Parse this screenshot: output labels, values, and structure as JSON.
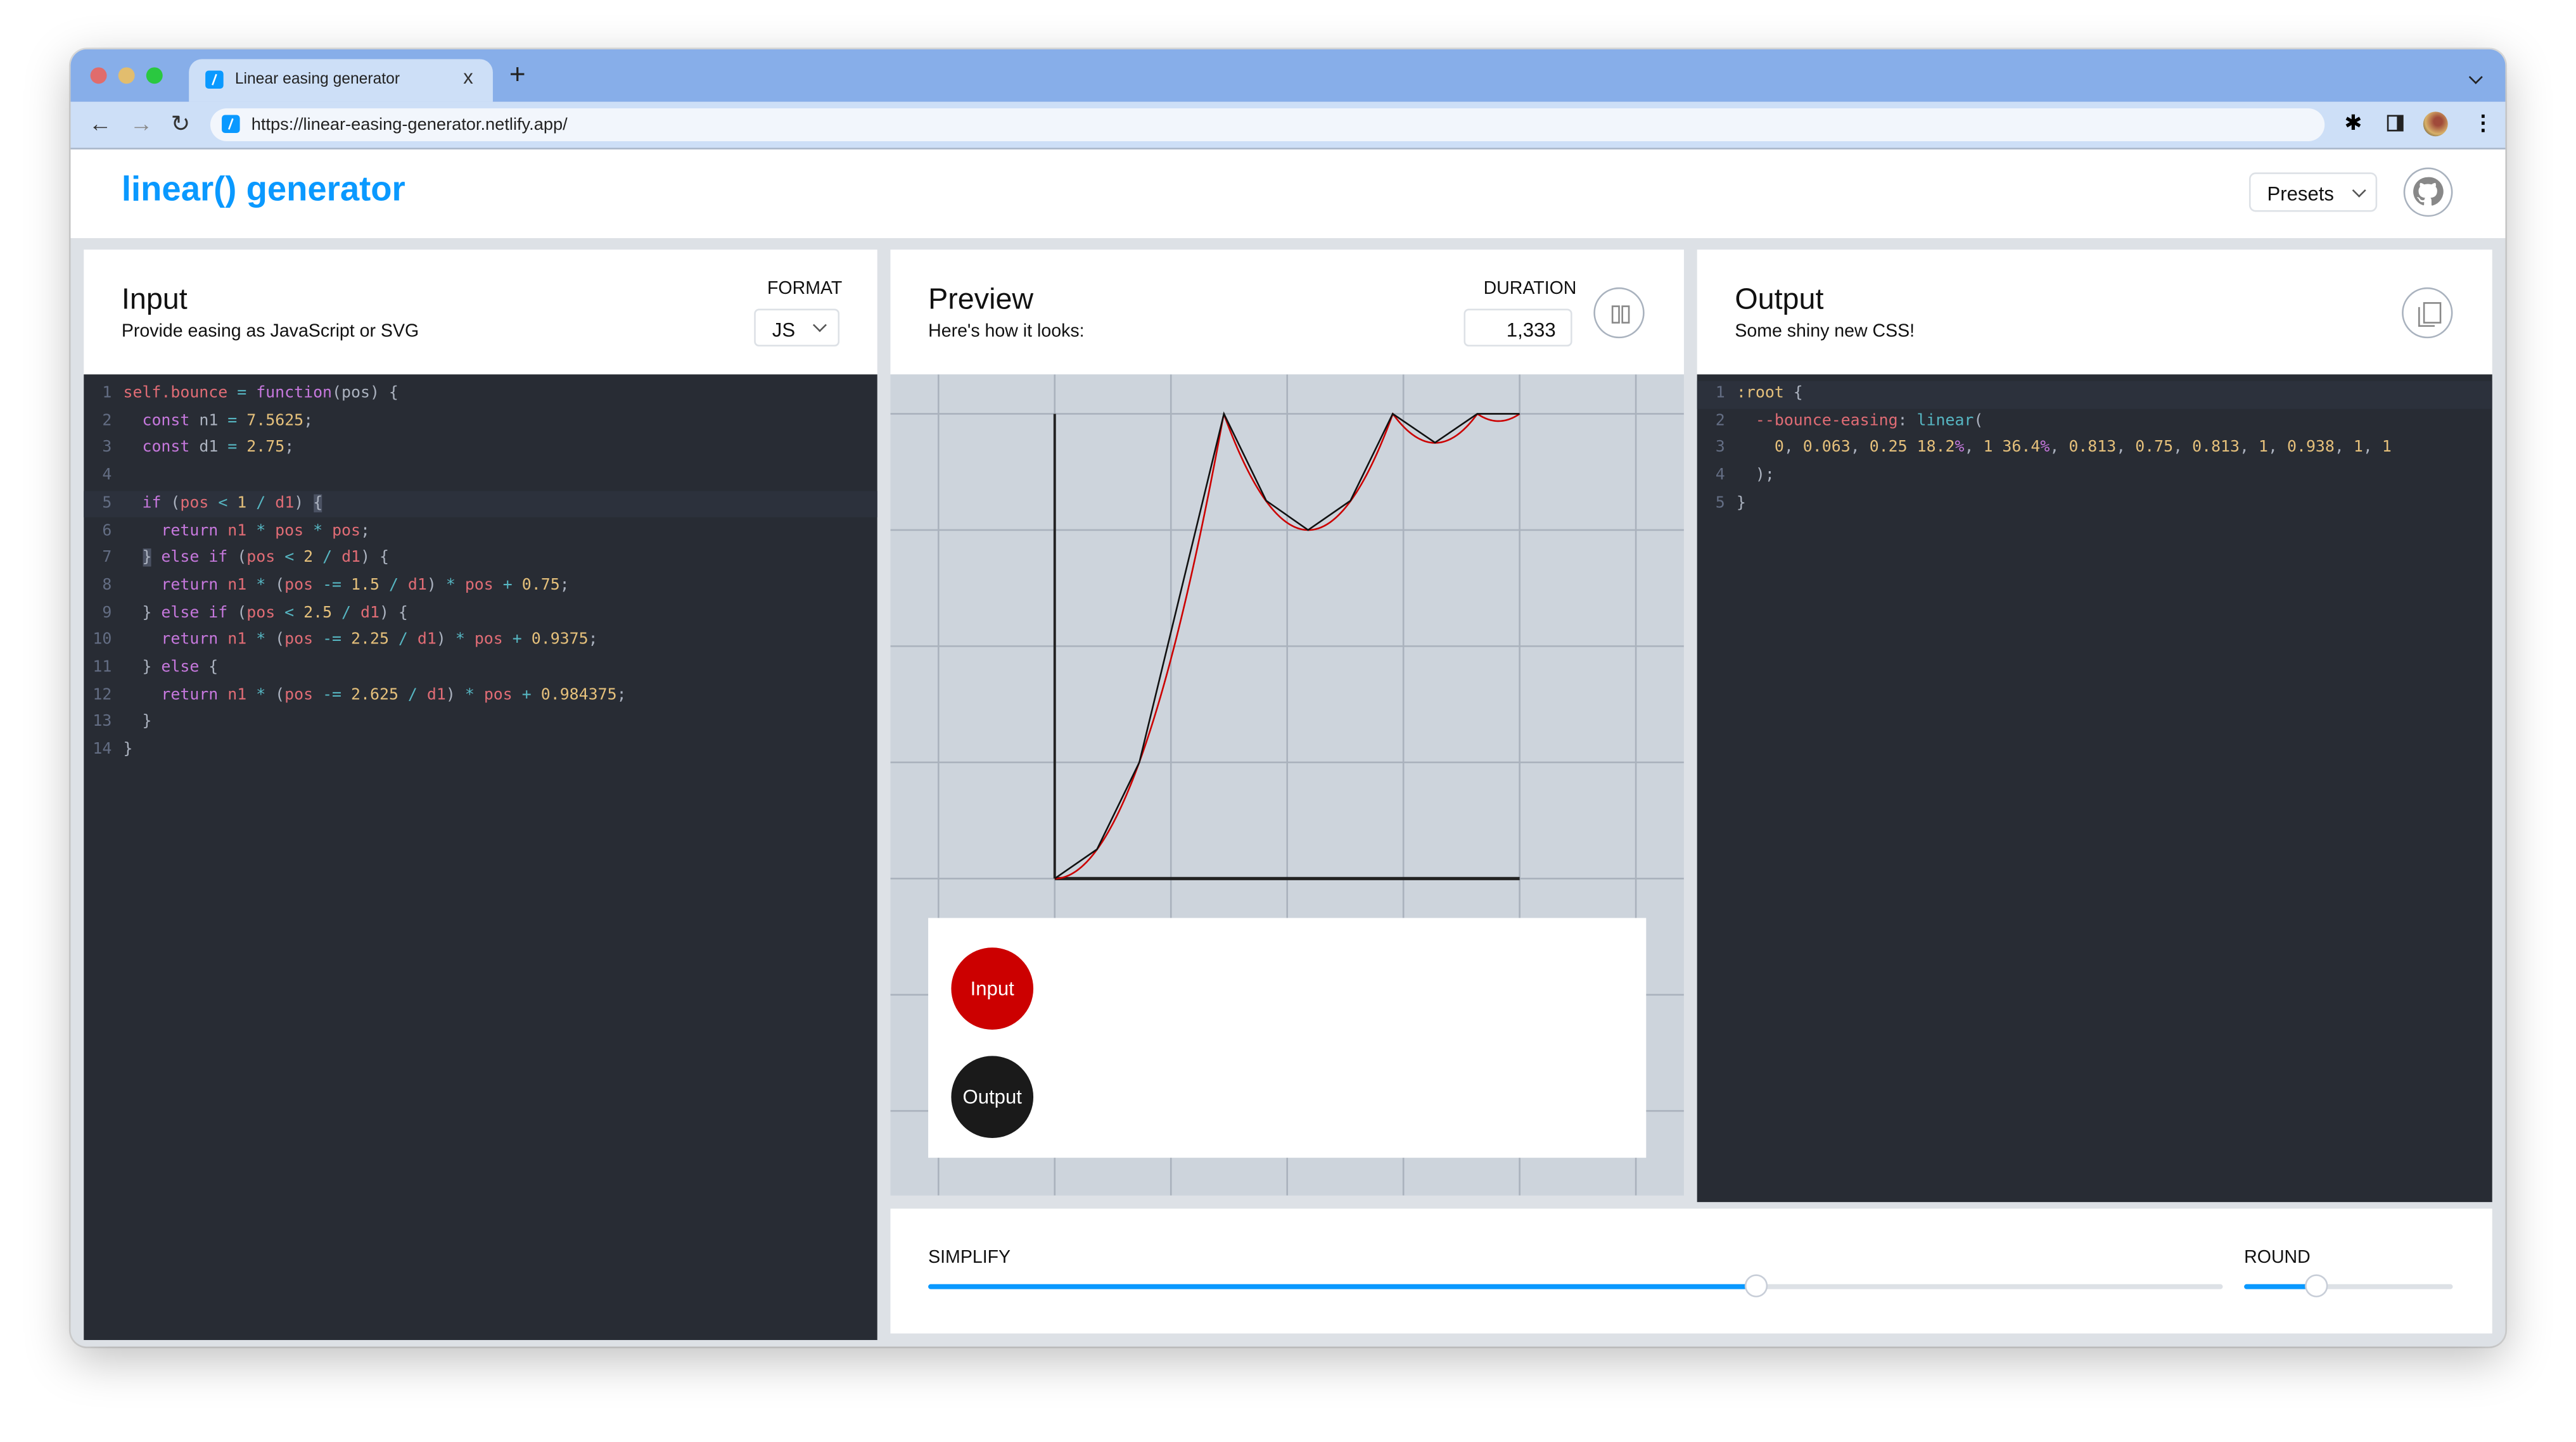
{
  "browser": {
    "tab_title": "Linear easing generator",
    "tab_close": "x",
    "new_tab": "+",
    "url": "https://linear-easing-generator.netlify.app/",
    "traffic_colors": [
      "#e06c6c",
      "#e2bd6e",
      "#2ac840"
    ]
  },
  "header": {
    "title": "linear() generator",
    "presets_label": "Presets",
    "brand_color": "#0a99ff"
  },
  "input": {
    "title": "Input",
    "subtitle": "Provide easing as JavaScript or SVG",
    "format_label": "FORMAT",
    "format_value": "JS",
    "lines": [
      [
        [
          "self.bounce",
          "v"
        ],
        [
          " = ",
          "o"
        ],
        [
          "function",
          "k"
        ],
        [
          "(pos) {",
          "p"
        ]
      ],
      [
        [
          "  ",
          "p"
        ],
        [
          "const",
          "k"
        ],
        [
          " n1 ",
          "p"
        ],
        [
          "=",
          "o"
        ],
        [
          " ",
          "p"
        ],
        [
          "7.5625",
          "n"
        ],
        [
          ";",
          "p"
        ]
      ],
      [
        [
          "  ",
          "p"
        ],
        [
          "const",
          "k"
        ],
        [
          " d1 ",
          "p"
        ],
        [
          "=",
          "o"
        ],
        [
          " ",
          "p"
        ],
        [
          "2.75",
          "n"
        ],
        [
          ";",
          "p"
        ]
      ],
      [],
      [
        [
          "  ",
          "p"
        ],
        [
          "if",
          "k"
        ],
        [
          " (",
          "p"
        ],
        [
          "pos",
          "v"
        ],
        [
          " < ",
          "o"
        ],
        [
          "1",
          "n"
        ],
        [
          " / ",
          "o"
        ],
        [
          "d1",
          "v"
        ],
        [
          ") ",
          "p"
        ],
        [
          "{",
          "bracket"
        ]
      ],
      [
        [
          "    ",
          "p"
        ],
        [
          "return",
          "k"
        ],
        [
          " n1 ",
          "v"
        ],
        [
          "*",
          "o"
        ],
        [
          " pos ",
          "v"
        ],
        [
          "*",
          "o"
        ],
        [
          " pos",
          "v"
        ],
        [
          ";",
          "p"
        ]
      ],
      [
        [
          "  ",
          "p"
        ],
        [
          "}",
          "bracket"
        ],
        [
          " else if",
          "k"
        ],
        [
          " (",
          "p"
        ],
        [
          "pos",
          "v"
        ],
        [
          " < ",
          "o"
        ],
        [
          "2",
          "n"
        ],
        [
          " / ",
          "o"
        ],
        [
          "d1",
          "v"
        ],
        [
          ") {",
          "p"
        ]
      ],
      [
        [
          "    ",
          "p"
        ],
        [
          "return",
          "k"
        ],
        [
          " n1 ",
          "v"
        ],
        [
          "*",
          "o"
        ],
        [
          " (",
          "p"
        ],
        [
          "pos",
          "v"
        ],
        [
          " -= ",
          "o"
        ],
        [
          "1.5",
          "n"
        ],
        [
          " / ",
          "o"
        ],
        [
          "d1",
          "v"
        ],
        [
          ") ",
          "p"
        ],
        [
          "*",
          "o"
        ],
        [
          " pos ",
          "v"
        ],
        [
          "+",
          "o"
        ],
        [
          " ",
          "p"
        ],
        [
          "0.75",
          "n"
        ],
        [
          ";",
          "p"
        ]
      ],
      [
        [
          "  } ",
          "p"
        ],
        [
          "else if",
          "k"
        ],
        [
          " (",
          "p"
        ],
        [
          "pos",
          "v"
        ],
        [
          " < ",
          "o"
        ],
        [
          "2.5",
          "n"
        ],
        [
          " / ",
          "o"
        ],
        [
          "d1",
          "v"
        ],
        [
          ") {",
          "p"
        ]
      ],
      [
        [
          "    ",
          "p"
        ],
        [
          "return",
          "k"
        ],
        [
          " n1 ",
          "v"
        ],
        [
          "*",
          "o"
        ],
        [
          " (",
          "p"
        ],
        [
          "pos",
          "v"
        ],
        [
          " -= ",
          "o"
        ],
        [
          "2.25",
          "n"
        ],
        [
          " / ",
          "o"
        ],
        [
          "d1",
          "v"
        ],
        [
          ") ",
          "p"
        ],
        [
          "*",
          "o"
        ],
        [
          " pos ",
          "v"
        ],
        [
          "+",
          "o"
        ],
        [
          " ",
          "p"
        ],
        [
          "0.9375",
          "n"
        ],
        [
          ";",
          "p"
        ]
      ],
      [
        [
          "  } ",
          "p"
        ],
        [
          "else",
          "k"
        ],
        [
          " {",
          "p"
        ]
      ],
      [
        [
          "    ",
          "p"
        ],
        [
          "return",
          "k"
        ],
        [
          " n1 ",
          "v"
        ],
        [
          "*",
          "o"
        ],
        [
          " (",
          "p"
        ],
        [
          "pos",
          "v"
        ],
        [
          " -= ",
          "o"
        ],
        [
          "2.625",
          "n"
        ],
        [
          " / ",
          "o"
        ],
        [
          "d1",
          "v"
        ],
        [
          ") ",
          "p"
        ],
        [
          "*",
          "o"
        ],
        [
          " pos ",
          "v"
        ],
        [
          "+",
          "o"
        ],
        [
          " ",
          "p"
        ],
        [
          "0.984375",
          "n"
        ],
        [
          ";",
          "p"
        ]
      ],
      [
        [
          "  }",
          "p"
        ]
      ],
      [
        [
          "}",
          "p"
        ]
      ]
    ]
  },
  "preview": {
    "title": "Preview",
    "subtitle": "Here's how it looks:",
    "duration_label": "DURATION",
    "duration_value": "1,333",
    "input_ball": "Input",
    "output_ball": "Output",
    "input_color": "#cc0000",
    "output_color": "#1a1a1a"
  },
  "output": {
    "title": "Output",
    "subtitle": "Some shiny new CSS!",
    "lines": [
      [
        [
          ":root",
          "n"
        ],
        [
          " {",
          "p"
        ]
      ],
      [
        [
          "  ",
          "p"
        ],
        [
          "--bounce-easing",
          "v"
        ],
        [
          ": ",
          "p"
        ],
        [
          "linear",
          "c"
        ],
        [
          "(",
          "p"
        ]
      ],
      [
        [
          "    ",
          "p"
        ],
        [
          "0",
          "n"
        ],
        [
          ", ",
          "p"
        ],
        [
          "0.063",
          "n"
        ],
        [
          ", ",
          "p"
        ],
        [
          "0.25 18.2",
          "n"
        ],
        [
          "%",
          "pct"
        ],
        [
          ", ",
          "p"
        ],
        [
          "1 36.4",
          "n"
        ],
        [
          "%",
          "pct"
        ],
        [
          ", ",
          "p"
        ],
        [
          "0.813",
          "n"
        ],
        [
          ", ",
          "p"
        ],
        [
          "0.75",
          "n"
        ],
        [
          ", ",
          "p"
        ],
        [
          "0.813",
          "n"
        ],
        [
          ", ",
          "p"
        ],
        [
          "1",
          "n"
        ],
        [
          ", ",
          "p"
        ],
        [
          "0.938",
          "n"
        ],
        [
          ", ",
          "p"
        ],
        [
          "1",
          "n"
        ],
        [
          ", ",
          "p"
        ],
        [
          "1",
          "n"
        ]
      ],
      [
        [
          "  );",
          "p"
        ]
      ],
      [
        [
          "}",
          "p"
        ]
      ]
    ]
  },
  "controls": {
    "simplify_label": "SIMPLIFY",
    "simplify_value": 0.64,
    "round_label": "ROUND",
    "round_value": 0.35
  },
  "chart_data": {
    "type": "line",
    "xlim": [
      0,
      1
    ],
    "ylim": [
      0,
      1
    ],
    "grid": true,
    "series": [
      {
        "role": "input",
        "color": "#cc0000",
        "function": "bounce"
      },
      {
        "role": "output",
        "color": "#111111",
        "x": [
          0,
          0.091,
          0.182,
          0.364,
          0.455,
          0.545,
          0.636,
          0.727,
          0.818,
          0.909,
          1
        ],
        "y": [
          0,
          0.063,
          0.25,
          1,
          0.813,
          0.75,
          0.813,
          1,
          0.938,
          1,
          1
        ]
      }
    ]
  }
}
